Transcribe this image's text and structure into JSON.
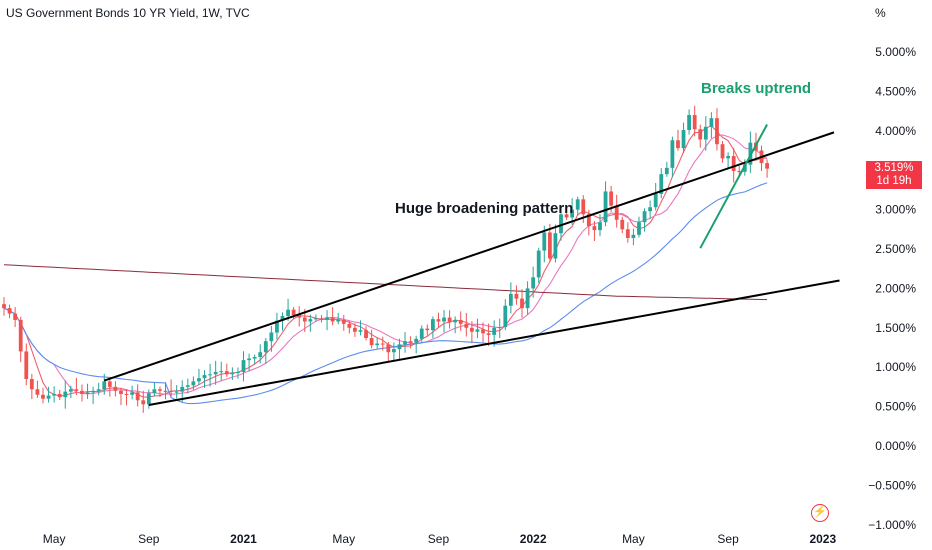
{
  "header": {
    "title": "US Government Bonds 10 YR Yield, 1W, TVC",
    "unit": "%"
  },
  "annotations": {
    "breaks_uptrend": "Breaks uptrend",
    "pattern": "Huge broadening pattern"
  },
  "price_tag": {
    "value": "3.519%",
    "countdown": "1d 19h"
  },
  "colors": {
    "up": "#26a69a",
    "down": "#ef5350",
    "ma_fast": "#f0606e",
    "ma_mid": "#e879c4",
    "ma_50": "#5b8def",
    "ma_200": "#8b2b3b",
    "trendline": "#000000",
    "uptrend_line": "#1aa06d",
    "annotation_green": "#1aa06d"
  },
  "chart_data": {
    "type": "candlestick",
    "title": "US Government Bonds 10 YR Yield, 1W, TVC",
    "ylabel": "%",
    "ylim": [
      -1.0,
      5.2
    ],
    "y_ticks": [
      "5.000%",
      "4.500%",
      "4.000%",
      "3.500%",
      "3.000%",
      "2.500%",
      "2.000%",
      "1.500%",
      "1.000%",
      "0.500%",
      "0.000%",
      "−0.500%",
      "−1.000%"
    ],
    "y_tick_values": [
      5.0,
      4.5,
      4.0,
      3.5,
      3.0,
      2.5,
      2.0,
      1.5,
      1.0,
      0.5,
      0.0,
      -0.5,
      -1.0
    ],
    "x_ticks": [
      {
        "label": "May",
        "week": 9,
        "bold": false
      },
      {
        "label": "Sep",
        "week": 26,
        "bold": false
      },
      {
        "label": "2021",
        "week": 43,
        "bold": true
      },
      {
        "label": "May",
        "week": 61,
        "bold": false
      },
      {
        "label": "Sep",
        "week": 78,
        "bold": false
      },
      {
        "label": "2022",
        "week": 95,
        "bold": true
      },
      {
        "label": "May",
        "week": 113,
        "bold": false
      },
      {
        "label": "Sep",
        "week": 130,
        "bold": false
      },
      {
        "label": "2023",
        "week": 147,
        "bold": true
      }
    ],
    "last_value": 3.519,
    "closes": [
      1.75,
      1.68,
      1.6,
      1.2,
      0.85,
      0.72,
      0.65,
      0.6,
      0.64,
      0.66,
      0.62,
      0.69,
      0.72,
      0.7,
      0.66,
      0.68,
      0.7,
      0.72,
      0.82,
      0.75,
      0.7,
      0.66,
      0.65,
      0.68,
      0.58,
      0.53,
      0.67,
      0.72,
      0.7,
      0.7,
      0.69,
      0.69,
      0.75,
      0.77,
      0.82,
      0.86,
      0.9,
      0.91,
      0.94,
      0.95,
      0.91,
      0.93,
      0.94,
      1.09,
      1.11,
      1.13,
      1.19,
      1.33,
      1.44,
      1.59,
      1.65,
      1.73,
      1.66,
      1.63,
      1.58,
      1.61,
      1.62,
      1.6,
      1.63,
      1.58,
      1.6,
      1.55,
      1.5,
      1.45,
      1.47,
      1.37,
      1.28,
      1.3,
      1.29,
      1.19,
      1.23,
      1.29,
      1.33,
      1.31,
      1.36,
      1.49,
      1.47,
      1.61,
      1.58,
      1.63,
      1.57,
      1.6,
      1.55,
      1.5,
      1.45,
      1.48,
      1.43,
      1.41,
      1.5,
      1.51,
      1.78,
      1.93,
      1.87,
      1.75,
      2.0,
      2.14,
      2.48,
      2.71,
      2.38,
      2.7,
      2.94,
      2.9,
      3.0,
      3.13,
      2.94,
      2.79,
      2.74,
      2.84,
      3.23,
      3.05,
      2.87,
      2.75,
      2.64,
      2.68,
      2.84,
      2.98,
      3.03,
      3.2,
      3.45,
      3.53,
      3.88,
      3.78,
      4.01,
      4.2,
      4.02,
      3.89,
      4.05,
      4.16,
      3.83,
      3.65,
      3.68,
      3.49,
      3.48,
      3.57,
      3.85,
      3.75,
      3.59,
      3.52
    ],
    "ma_series": [
      {
        "key": "ma_fast"
      },
      {
        "key": "ma_mid"
      },
      {
        "key": "ma_50"
      },
      {
        "key": "ma_200"
      }
    ]
  }
}
